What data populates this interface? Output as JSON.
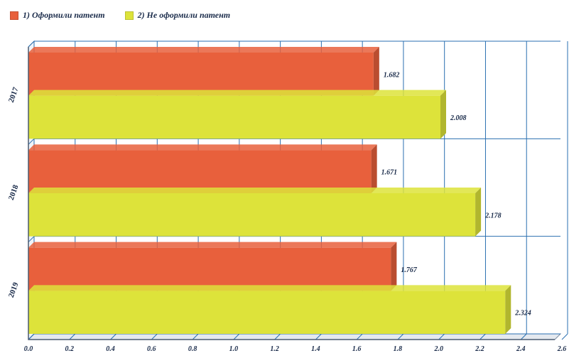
{
  "legend": {
    "items": [
      {
        "label": "1) Оформили патент",
        "color": "#e8603c"
      },
      {
        "label": "2) Не оформили патент",
        "color": "#dde33a"
      }
    ]
  },
  "chart_data": {
    "type": "bar",
    "orientation": "horizontal",
    "categories": [
      "2017",
      "2018",
      "2019"
    ],
    "series": [
      {
        "name": "1) Оформили патент",
        "values": [
          1.682,
          1.671,
          1.767
        ],
        "labels": [
          "1.682",
          "1.671",
          "1.767"
        ],
        "color": "#e8603c"
      },
      {
        "name": "2) Не оформили патент",
        "values": [
          2.008,
          2.178,
          2.324
        ],
        "labels": [
          "2.008",
          "2.178",
          "2.324"
        ],
        "color": "#dde33a"
      }
    ],
    "xlim": [
      0,
      2.6
    ],
    "xticks": [
      "0.0",
      "0.2",
      "0.4",
      "0.6",
      "0.8",
      "1.0",
      "1.2",
      "1.4",
      "1.6",
      "1.8",
      "2.0",
      "2.2",
      "2.4",
      "2.6"
    ],
    "grid": true,
    "legend_position": "top-left"
  }
}
